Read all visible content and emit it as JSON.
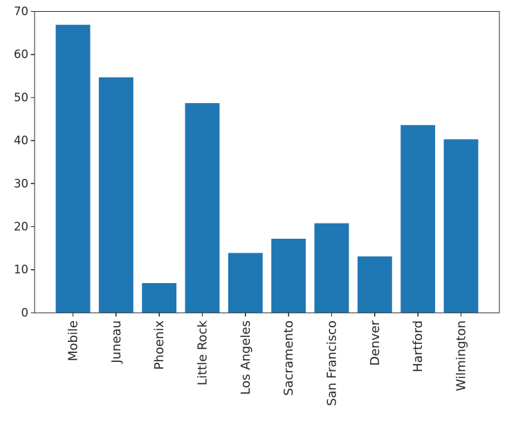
{
  "chart_data": {
    "type": "bar",
    "categories": [
      "Mobile",
      "Juneau",
      "Phoenix",
      "Little Rock",
      "Los Angeles",
      "Sacramento",
      "San Francisco",
      "Denver",
      "Hartford",
      "Wilmington"
    ],
    "values": [
      66.9,
      54.7,
      6.9,
      48.7,
      13.9,
      17.2,
      20.8,
      13.1,
      43.6,
      40.3
    ],
    "title": "",
    "xlabel": "",
    "ylabel": "",
    "ylim": [
      0,
      70
    ],
    "yticks": [
      0,
      10,
      20,
      30,
      40,
      50,
      60,
      70
    ],
    "x_tick_rotation": 90,
    "grid": false,
    "legend": "none",
    "colors": {
      "bar": "#1f77b4",
      "axis": "#262626",
      "tick_label": "#262626",
      "background": "#ffffff"
    }
  }
}
